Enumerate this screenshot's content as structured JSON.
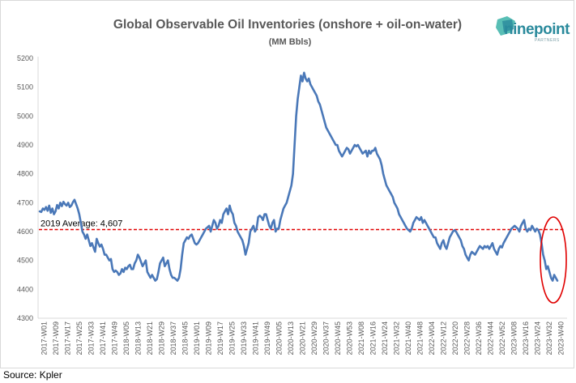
{
  "chart_data": {
    "type": "line",
    "title": "Global Observable Oil Inventories (onshore + oil-on-water)",
    "subtitle": "(MM Bbls)",
    "source": "Source: Kpler",
    "ylim": [
      4300,
      5200
    ],
    "yticks": [
      4300,
      4400,
      4500,
      4600,
      4700,
      4800,
      4900,
      5000,
      5100,
      5200
    ],
    "xticks": [
      "2017-W01",
      "2017-W09",
      "2017-W17",
      "2017-W25",
      "2017-W33",
      "2017-W41",
      "2017-W49",
      "2018-W05",
      "2018-W13",
      "2018-W21",
      "2018-W29",
      "2018-W37",
      "2018-W45",
      "2019-W01",
      "2019-W09",
      "2019-W17",
      "2019-W25",
      "2019-W33",
      "2019-W41",
      "2019-W49",
      "2020-W05",
      "2020-W13",
      "2020-W21",
      "2020-W29",
      "2020-W37",
      "2020-W45",
      "2020-W53",
      "2021-W08",
      "2021-W16",
      "2021-W24",
      "2021-W32",
      "2021-W40",
      "2021-W48",
      "2022-W04",
      "2022-W12",
      "2022-W20",
      "2022-W28",
      "2022-W36",
      "2022-W44",
      "2022-W52",
      "2023-W08",
      "2023-W16",
      "2023-W24",
      "2023-W32",
      "2023-W40"
    ],
    "series": [
      {
        "color": "#4a78b8",
        "values": [
          4670,
          4668,
          4680,
          4675,
          4685,
          4672,
          4690,
          4665,
          4680,
          4660,
          4670,
          4692,
          4680,
          4700,
          4688,
          4703,
          4695,
          4690,
          4700,
          4685,
          4690,
          4702,
          4710,
          4695,
          4680,
          4660,
          4630,
          4600,
          4590,
          4575,
          4590,
          4570,
          4550,
          4560,
          4545,
          4530,
          4575,
          4560,
          4548,
          4555,
          4540,
          4520,
          4520,
          4510,
          4500,
          4505,
          4470,
          4460,
          4465,
          4460,
          4450,
          4455,
          4470,
          4460,
          4475,
          4470,
          4480,
          4485,
          4470,
          4470,
          4490,
          4500,
          4520,
          4510,
          4495,
          4480,
          4490,
          4500,
          4460,
          4450,
          4440,
          4450,
          4440,
          4430,
          4435,
          4460,
          4490,
          4500,
          4510,
          4480,
          4490,
          4500,
          4470,
          4450,
          4440,
          4440,
          4435,
          4430,
          4440,
          4470,
          4520,
          4560,
          4570,
          4580,
          4575,
          4585,
          4590,
          4575,
          4560,
          4555,
          4560,
          4570,
          4580,
          4590,
          4600,
          4610,
          4615,
          4620,
          4600,
          4620,
          4640,
          4630,
          4610,
          4620,
          4640,
          4630,
          4660,
          4670,
          4680,
          4660,
          4690,
          4670,
          4660,
          4630,
          4620,
          4600,
          4590,
          4580,
          4570,
          4550,
          4520,
          4540,
          4560,
          4600,
          4610,
          4620,
          4600,
          4610,
          4650,
          4655,
          4650,
          4640,
          4660,
          4660,
          4640,
          4620,
          4610,
          4630,
          4640,
          4600,
          4610,
          4610,
          4640,
          4660,
          4680,
          4690,
          4700,
          4720,
          4740,
          4760,
          4800,
          4900,
          5000,
          5060,
          5100,
          5140,
          5120,
          5150,
          5130,
          5120,
          5130,
          5110,
          5100,
          5090,
          5080,
          5070,
          5050,
          5040,
          5020,
          5000,
          4980,
          4960,
          4950,
          4940,
          4930,
          4920,
          4910,
          4900,
          4900,
          4880,
          4870,
          4860,
          4870,
          4880,
          4890,
          4885,
          4870,
          4880,
          4890,
          4900,
          4895,
          4900,
          4890,
          4880,
          4870,
          4875,
          4880,
          4860,
          4880,
          4870,
          4880,
          4880,
          4890,
          4870,
          4860,
          4850,
          4830,
          4800,
          4780,
          4760,
          4750,
          4740,
          4730,
          4720,
          4700,
          4690,
          4680,
          4660,
          4650,
          4640,
          4630,
          4620,
          4610,
          4605,
          4600,
          4610,
          4630,
          4640,
          4650,
          4645,
          4640,
          4650,
          4630,
          4640,
          4630,
          4620,
          4610,
          4600,
          4590,
          4580,
          4580,
          4560,
          4550,
          4540,
          4560,
          4570,
          4550,
          4540,
          4560,
          4580,
          4590,
          4600,
          4605,
          4600,
          4590,
          4580,
          4570,
          4550,
          4540,
          4520,
          4510,
          4500,
          4520,
          4530,
          4525,
          4520,
          4530,
          4540,
          4550,
          4545,
          4540,
          4550,
          4545,
          4550,
          4540,
          4550,
          4560,
          4540,
          4530,
          4520,
          4540,
          4550,
          4545,
          4560,
          4570,
          4580,
          4590,
          4600,
          4610,
          4615,
          4620,
          4615,
          4610,
          4600,
          4620,
          4630,
          4640,
          4610,
          4600,
          4610,
          4605,
          4620,
          4610,
          4600,
          4610,
          4605,
          4590,
          4560,
          4520,
          4500,
          4470,
          4480,
          4460,
          4440,
          4430,
          4450,
          4440,
          4430
        ]
      }
    ],
    "reference_line": {
      "label": "2019 Average: 4,607",
      "value": 4607,
      "color": "#e00000",
      "style": "dashed"
    },
    "annotation": {
      "shape": "ellipse",
      "color": "#e00000",
      "target": "latest weeks (2023-W32 to 2023-W40)"
    },
    "grid": false,
    "legend": "none"
  },
  "logo": {
    "name": "ninepoint",
    "sub": "PARTNERS",
    "color": "#2a8a9c"
  }
}
